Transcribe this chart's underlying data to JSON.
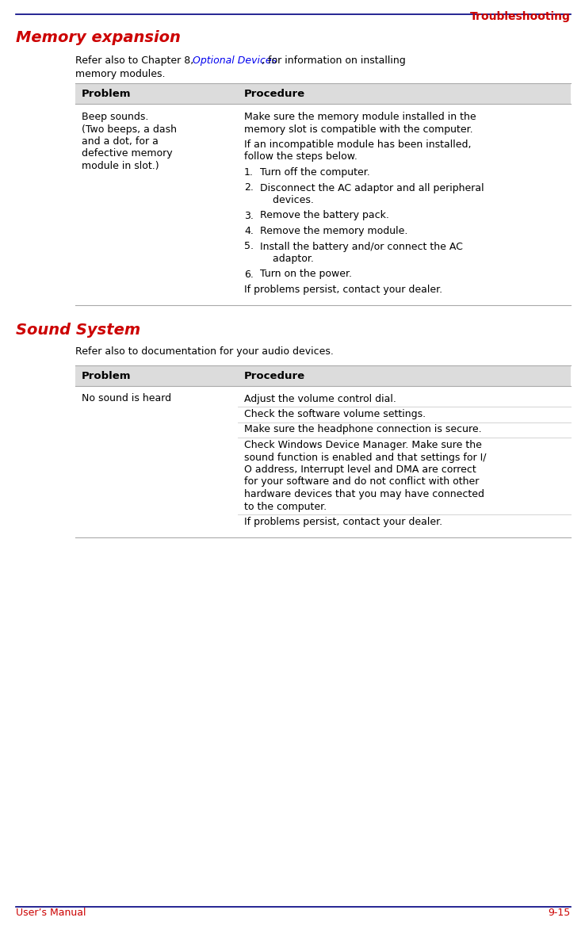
{
  "page_title": "Troubleshooting",
  "page_title_color": "#CC0000",
  "header_line_color": "#000080",
  "footer_line_color": "#000080",
  "footer_left": "User’s Manual",
  "footer_right": "9-15",
  "footer_color": "#CC0000",
  "section1_title": "Memory expansion",
  "section1_title_color": "#CC0000",
  "section2_title": "Sound System",
  "section2_title_color": "#CC0000",
  "section1_intro_plain": "Refer also to Chapter 8, ",
  "section1_intro_link": "Optional Devices",
  "section1_link_color": "#0000EE",
  "section1_intro_end": ", for information on installing\nmemory modules.",
  "section2_intro": "Refer also to documentation for your audio devices.",
  "table_header_bg": "#DCDCDC",
  "table_header_problem": "Problem",
  "table_header_procedure": "Procedure",
  "table1_problem_lines": [
    "Beep sounds.",
    "(Two beeps, a dash",
    "and a dot, for a",
    "defective memory",
    "module in slot.)"
  ],
  "table1_proc_paras": [
    {
      "type": "para",
      "text": "Make sure the memory module installed in the\nmemory slot is compatible with the computer."
    },
    {
      "type": "para",
      "text": "If an incompatible module has been installed,\nfollow the steps below."
    },
    {
      "type": "item",
      "num": "1.",
      "text": "Turn off the computer."
    },
    {
      "type": "item",
      "num": "2.",
      "text": "Disconnect the AC adaptor and all peripheral\n    devices."
    },
    {
      "type": "item",
      "num": "3.",
      "text": "Remove the battery pack."
    },
    {
      "type": "item",
      "num": "4.",
      "text": "Remove the memory module."
    },
    {
      "type": "item",
      "num": "5.",
      "text": "Install the battery and/or connect the AC\n    adaptor."
    },
    {
      "type": "item",
      "num": "6.",
      "text": "Turn on the power."
    },
    {
      "type": "para",
      "text": "If problems persist, contact your dealer."
    }
  ],
  "table2_problem_lines": [
    "No sound is heard"
  ],
  "table2_proc_rows": [
    "Adjust the volume control dial.",
    "Check the software volume settings.",
    "Make sure the headphone connection is secure.",
    "Check Windows Device Manager. Make sure the\nsound function is enabled and that settings for I/\nO address, Interrupt level and DMA are correct\nfor your software and do not conflict with other\nhardware devices that you may have connected\nto the computer.",
    "If problems persist, contact your dealer."
  ],
  "bg_color": "#FFFFFF",
  "text_color": "#000000",
  "body_font_size": 9.0,
  "header_font_size": 9.5,
  "section_title_font_size": 14
}
